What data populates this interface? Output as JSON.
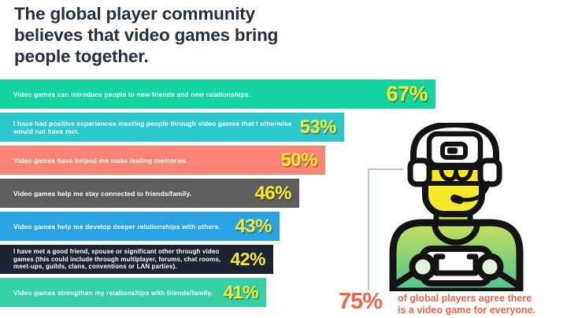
{
  "title": "The global player community believes that video games bring people together.",
  "chart_data": {
    "type": "bar",
    "orientation": "horizontal",
    "unit": "%",
    "xlim": [
      0,
      67
    ],
    "grid": false,
    "categories": [
      "Video games can introduce people to new friends and new relationships.",
      "I have had positive experiences meeting people through video games that I otherwise would not have met.",
      "Video games have helped me make lasting memories.",
      "Video games help me stay connected to friends/family.",
      "Video games help me develop deeper relationships with others.",
      "I have met a good friend, spouse or significant other through video games (this could include through multiplayer, forums, chat rooms, meet-ups, guilds, clans, conventions or LAN parties).",
      "Video games strengthen my relationships with friends/family."
    ],
    "values": [
      67,
      53,
      50,
      46,
      43,
      42,
      41
    ],
    "value_labels": [
      "67%",
      "53%",
      "50%",
      "46%",
      "43%",
      "42%",
      "41%"
    ],
    "bar_colors": [
      "#14d5a0",
      "#2bc9ce",
      "#fb8574",
      "#5d5d5d",
      "#29a3e3",
      "#1b2430",
      "#36d0a7"
    ],
    "value_label_color": "#f7e92f",
    "label_text_color": "#ffffff"
  },
  "callout": {
    "stat": "75%",
    "line1": "of global players agree there",
    "line2": "is a video game for everyone.",
    "accent_color": "#f1654e"
  },
  "icon": {
    "name": "vr-gamer-with-controller-icon"
  },
  "colors": {
    "title": "#243140",
    "background": "#ffffff",
    "callout_line": "#b7c8d2"
  }
}
